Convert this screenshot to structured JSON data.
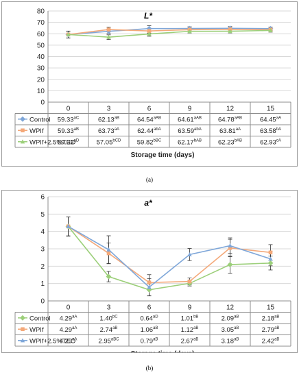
{
  "chart_data": [
    {
      "type": "line",
      "title": "L*",
      "categories": [
        "0",
        "3",
        "6",
        "9",
        "12",
        "15"
      ],
      "xlabel": "Storage time (days)",
      "ylabel": "",
      "ylim": [
        0,
        80
      ],
      "yticks": [
        "0",
        "10",
        "20",
        "30",
        "40",
        "50",
        "60",
        "70",
        "80"
      ],
      "grid": true,
      "legend": "table-below",
      "series": [
        {
          "name": "Control",
          "color": "#7fa7d9",
          "values": [
            59.33,
            62.13,
            64.54,
            64.61,
            64.78,
            64.45
          ],
          "errors": [
            3,
            2,
            2.5,
            1.5,
            1.5,
            1.5
          ],
          "labels": [
            "59.33",
            "62.13",
            "64.54",
            "64.61",
            "64.78",
            "64.45"
          ],
          "sups": [
            "aC",
            "aB",
            "aAB",
            "aAB",
            "aAB",
            "aA"
          ]
        },
        {
          "name": "WPIf",
          "color": "#f4a97a",
          "values": [
            59.33,
            63.73,
            62.44,
            63.59,
            63.81,
            63.58
          ],
          "errors": [
            3,
            2,
            2,
            1.5,
            1.5,
            1.5
          ],
          "labels": [
            "59.33",
            "63.73",
            "62.44",
            "63.59",
            "63.81",
            "63.58"
          ],
          "sups": [
            "aB",
            "aA",
            "abA",
            "abA",
            "aA",
            "bA"
          ]
        },
        {
          "name": "WPIf+2.5%TEO",
          "color": "#9ccf7a",
          "values": [
            59.33,
            57.05,
            59.82,
            62.17,
            62.23,
            62.93
          ],
          "errors": [
            3,
            2,
            2,
            1.5,
            1.5,
            1.5
          ],
          "labels": [
            "59.33",
            "57.05",
            "59.82",
            "62.17",
            "62.23",
            "62.93"
          ],
          "sups": [
            "aD",
            "bCD",
            "bBC",
            "bAB",
            "bAB",
            "cA"
          ]
        }
      ]
    },
    {
      "type": "line",
      "title": "a*",
      "categories": [
        "0",
        "3",
        "6",
        "9",
        "12",
        "15"
      ],
      "xlabel": "Storage time (days)",
      "ylabel": "",
      "ylim": [
        0,
        6
      ],
      "yticks": [
        "0",
        "1",
        "2",
        "3",
        "4",
        "5",
        "6"
      ],
      "grid": true,
      "legend": "table-below",
      "series": [
        {
          "name": "Control",
          "color": "#9ccf7a",
          "values": [
            4.29,
            1.4,
            0.64,
            1.01,
            2.09,
            2.18
          ],
          "errors": [
            0.55,
            0.3,
            0.35,
            0.15,
            0.5,
            0.4
          ],
          "labels": [
            "4.29",
            "1.40",
            "0.64",
            "1.01",
            "2.09",
            "2.18"
          ],
          "sups": [
            "aA",
            "bC",
            "aD",
            "bB",
            "aB",
            "aB"
          ]
        },
        {
          "name": "WPIf",
          "color": "#f4a97a",
          "values": [
            4.29,
            2.74,
            1.06,
            1.12,
            3.05,
            2.79
          ],
          "errors": [
            0.55,
            0.6,
            0.45,
            0.2,
            0.5,
            0.45
          ],
          "labels": [
            "4.29",
            "2.74",
            "1.06",
            "1.12",
            "3.05",
            "2.79"
          ],
          "sups": [
            "aA",
            "aB",
            "aB",
            "aB",
            "aB",
            "aB"
          ]
        },
        {
          "name": "WPIf+2.5%TEO",
          "color": "#7fa7d9",
          "values": [
            4.29,
            2.95,
            0.79,
            2.67,
            3.18,
            2.42
          ],
          "errors": [
            0.55,
            0.8,
            0.5,
            0.35,
            0.45,
            0.4
          ],
          "labels": [
            "4.29",
            "2.95",
            "0.79",
            "2.67",
            "3.18",
            "2.42"
          ],
          "sups": [
            "aA",
            "aBC",
            "aB",
            "aB",
            "aB",
            "aB"
          ]
        }
      ]
    }
  ],
  "captions": [
    "(a)",
    "(b)"
  ]
}
